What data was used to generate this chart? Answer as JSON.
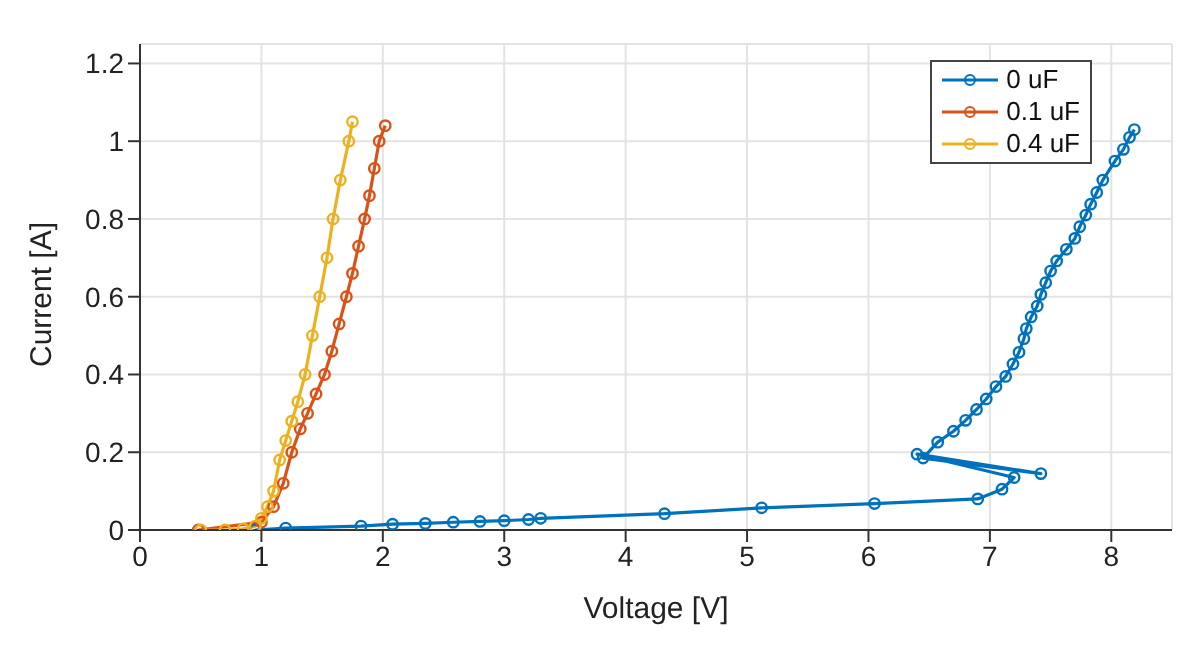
{
  "chart_data": {
    "type": "line",
    "xlabel": "Voltage [V]",
    "ylabel": "Current [A]",
    "xlim": [
      0,
      8.5
    ],
    "xticks": [
      0,
      1,
      2,
      3,
      4,
      5,
      6,
      7,
      8
    ],
    "ylim": [
      0,
      1.25
    ],
    "yticks": [
      0,
      0.2,
      0.4,
      0.6,
      0.8,
      1,
      1.2
    ],
    "grid": true,
    "legend": "top right",
    "marker": "circle",
    "line_style": "solid",
    "series": [
      {
        "name": "0 uF",
        "color": "#0072bd",
        "x": [
          0.95,
          1.2,
          1.82,
          2.08,
          2.35,
          2.58,
          2.8,
          3.0,
          3.2,
          3.3,
          4.32,
          5.12,
          6.05,
          6.9,
          7.1,
          7.2,
          6.4,
          7.42,
          6.45,
          6.57,
          6.7,
          6.8,
          6.89,
          6.97,
          7.05,
          7.13,
          7.19,
          7.24,
          7.28,
          7.3,
          7.34,
          7.39,
          7.42,
          7.46,
          7.5,
          7.55,
          7.63,
          7.7,
          7.74,
          7.79,
          7.83,
          7.88,
          7.93,
          8.03,
          8.1,
          8.15,
          8.19
        ],
        "values": [
          0,
          0.005,
          0.01,
          0.015,
          0.017,
          0.02,
          0.022,
          0.024,
          0.027,
          0.03,
          0.042,
          0.057,
          0.068,
          0.08,
          0.105,
          0.135,
          0.195,
          0.145,
          0.185,
          0.226,
          0.254,
          0.282,
          0.31,
          0.337,
          0.369,
          0.395,
          0.427,
          0.457,
          0.492,
          0.518,
          0.548,
          0.576,
          0.606,
          0.636,
          0.666,
          0.692,
          0.722,
          0.75,
          0.78,
          0.81,
          0.838,
          0.868,
          0.9,
          0.949,
          0.979,
          1.01,
          1.03
        ]
      },
      {
        "name": "0.1 uF",
        "color": "#d95319",
        "x": [
          0.48,
          1.0,
          1.1,
          1.18,
          1.25,
          1.32,
          1.38,
          1.45,
          1.52,
          1.58,
          1.64,
          1.7,
          1.75,
          1.8,
          1.85,
          1.89,
          1.93,
          1.97,
          2.02
        ],
        "values": [
          0,
          0.02,
          0.06,
          0.12,
          0.2,
          0.26,
          0.3,
          0.35,
          0.4,
          0.46,
          0.53,
          0.6,
          0.66,
          0.73,
          0.8,
          0.86,
          0.93,
          1.0,
          1.04
        ]
      },
      {
        "name": "0.4 uF",
        "color": "#edb120",
        "x": [
          0.5,
          0.7,
          0.85,
          0.95,
          1.0,
          1.05,
          1.1,
          1.15,
          1.2,
          1.25,
          1.3,
          1.36,
          1.42,
          1.48,
          1.54,
          1.59,
          1.65,
          1.72,
          1.75
        ],
        "values": [
          0,
          0,
          0.003,
          0.01,
          0.03,
          0.06,
          0.1,
          0.18,
          0.23,
          0.28,
          0.33,
          0.4,
          0.5,
          0.6,
          0.7,
          0.8,
          0.9,
          1.0,
          1.05
        ]
      }
    ]
  }
}
